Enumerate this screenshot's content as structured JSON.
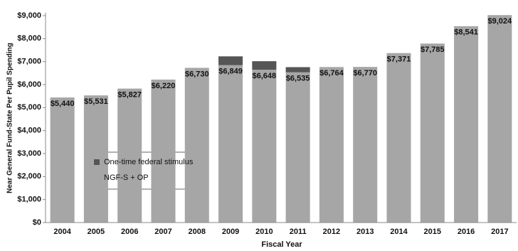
{
  "chart_data": {
    "type": "stacked_bar",
    "x_label": "Fiscal Year",
    "y_label": "Near General Fund-State Per Pupil Spending",
    "categories": [
      "2004",
      "2005",
      "2006",
      "2007",
      "2008",
      "2009",
      "2010",
      "2011",
      "2012",
      "2013",
      "2014",
      "2015",
      "2016",
      "2017"
    ],
    "series": [
      {
        "name": "One-time federal stimulus",
        "color": "#555555",
        "values": [
          null,
          null,
          null,
          null,
          null,
          380,
          370,
          225,
          null,
          null,
          null,
          null,
          null,
          null
        ]
      },
      {
        "name": "NGF-S + OP",
        "color": "#a6a6a6",
        "values": [
          5440,
          5531,
          5827,
          6220,
          6730,
          6849,
          6648,
          6535,
          6764,
          6770,
          7371,
          7785,
          8541,
          9024
        ],
        "value_labels": [
          "$5,440",
          "$5,531",
          "$5,827",
          "$6,220",
          "$6,730",
          "$6,849",
          "$6,648",
          "$6,535",
          "$6,764",
          "$6,770",
          "$7,371",
          "$7,785",
          "$8,541",
          "$9,024"
        ]
      }
    ],
    "ylim": [
      0,
      9000
    ],
    "yticks": [
      {
        "value": 0,
        "label": "$0"
      },
      {
        "value": 1000,
        "label": "$1,000"
      },
      {
        "value": 2000,
        "label": "$2,000"
      },
      {
        "value": 3000,
        "label": "$3,000"
      },
      {
        "value": 4000,
        "label": "$4,000"
      },
      {
        "value": 5000,
        "label": "$5,000"
      },
      {
        "value": 6000,
        "label": "$6,000"
      },
      {
        "value": 7000,
        "label": "$7,000"
      },
      {
        "value": 8000,
        "label": "$8,000"
      },
      {
        "value": 9000,
        "label": "$9,000"
      }
    ],
    "grid": false
  }
}
